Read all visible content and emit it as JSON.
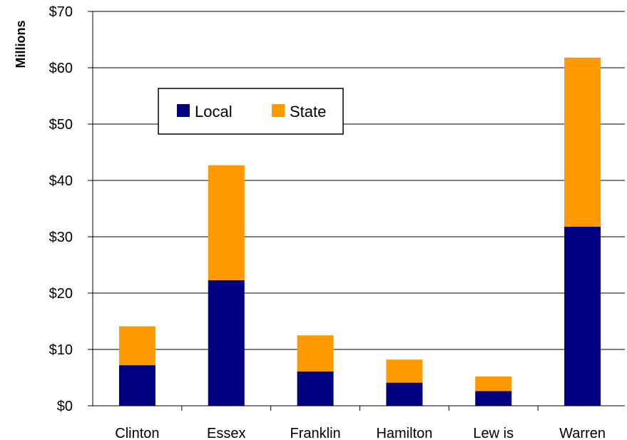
{
  "chart_data": {
    "type": "bar",
    "stacked": true,
    "title": "",
    "xlabel": "",
    "ylabel": "Millions",
    "categories": [
      "Clinton",
      "Essex",
      "Franklin",
      "Hamilton",
      "Lew is",
      "Warren"
    ],
    "series": [
      {
        "name": "Local",
        "color": "#000080",
        "values": [
          7.2,
          22.3,
          6.1,
          4.1,
          2.6,
          31.8
        ]
      },
      {
        "name": "State",
        "color": "#FF9900",
        "values": [
          6.9,
          20.4,
          6.4,
          4.1,
          2.6,
          30.0
        ]
      }
    ],
    "ylim": [
      0,
      70
    ],
    "yticks": [
      0,
      10,
      20,
      30,
      40,
      50,
      60,
      70
    ],
    "ytick_labels": [
      "$0",
      "$10",
      "$20",
      "$30",
      "$40",
      "$50",
      "$60",
      "$70"
    ],
    "grid": true,
    "legend_position": "top-left"
  }
}
